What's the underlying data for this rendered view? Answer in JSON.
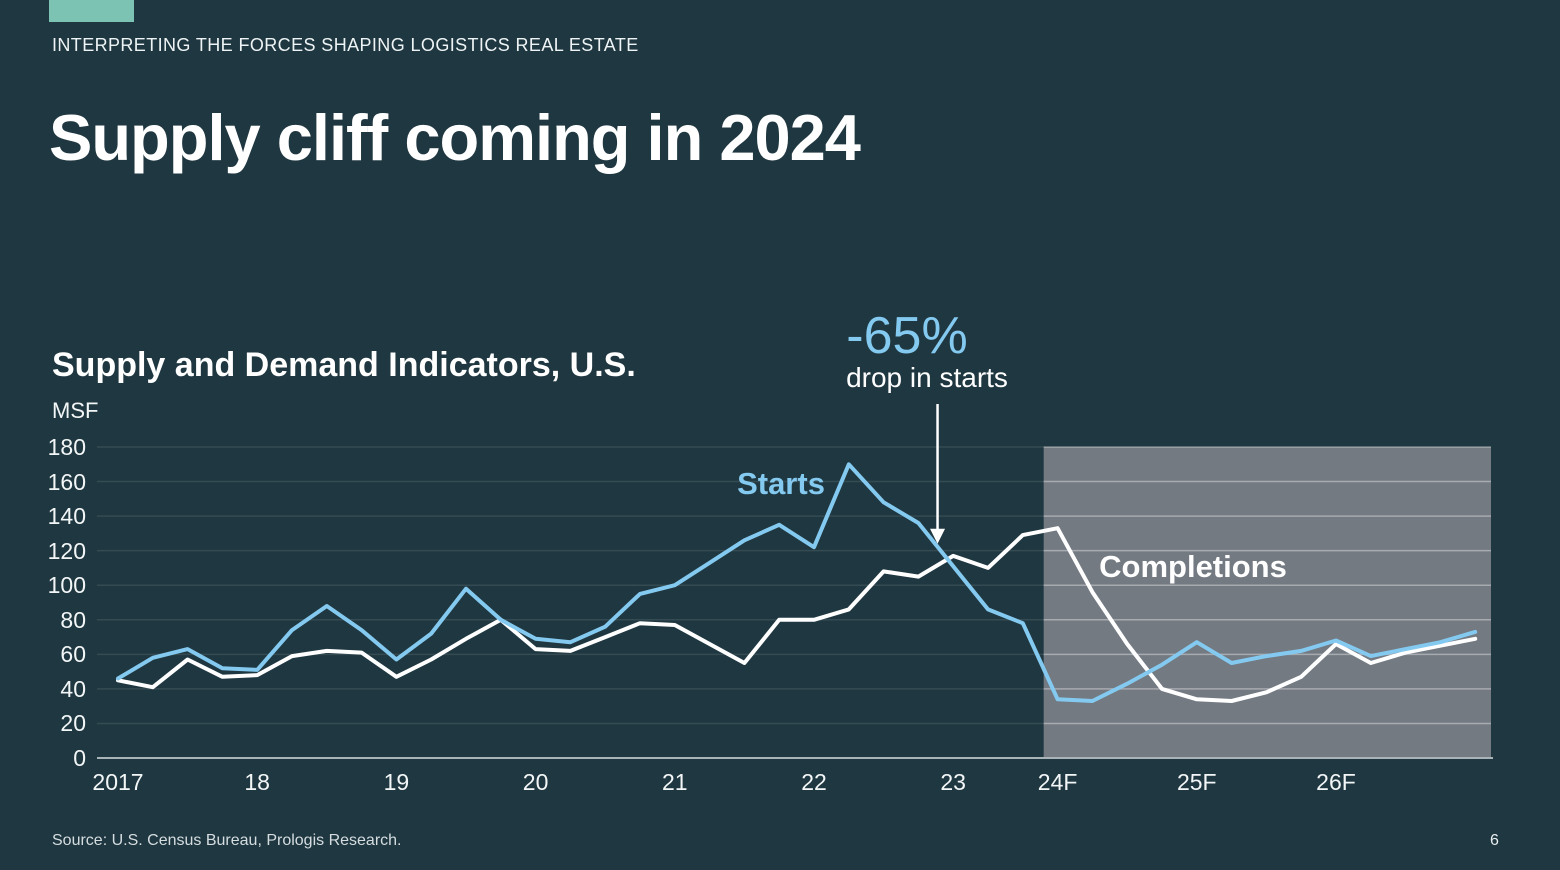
{
  "slide": {
    "eyebrow": "INTERPRETING THE FORCES SHAPING LOGISTICS REAL ESTATE",
    "title": "Supply cliff coming in 2024",
    "source": "Source: U.S. Census Bureau, Prologis Research.",
    "page_number": "6"
  },
  "chart": {
    "title": "Supply and Demand Indicators, U.S.",
    "unit_label": "MSF",
    "annotation": {
      "headline": "-65%",
      "subtext": "drop in starts"
    },
    "series_labels": {
      "starts": "Starts",
      "completions": "Completions"
    }
  },
  "colors": {
    "background": "#1f3740",
    "accent_teal": "#7cc3b4",
    "starts_blue": "#84caf0",
    "completions_white": "#ffffff",
    "forecast_gray": "#737a82",
    "axis_line": "#a9b4b9",
    "gridline": "rgba(255,255,255,0.10)",
    "gridline_on_gray": "rgba(255,255,255,0.30)"
  },
  "chart_data": {
    "type": "line",
    "title": "Supply and Demand Indicators, U.S.",
    "xlabel": "",
    "ylabel": "MSF",
    "ylim": [
      0,
      180
    ],
    "ytick_interval": 20,
    "yticks": [
      0,
      20,
      40,
      60,
      80,
      100,
      120,
      140,
      160,
      180
    ],
    "grid": "horizontal",
    "legend_position": "inline-labels",
    "x_start": "2017Q1",
    "x_freq": "quarterly",
    "x_labels": [
      "2017",
      "18",
      "19",
      "20",
      "21",
      "22",
      "23",
      "24F",
      "25F",
      "26F"
    ],
    "x_label_indices": [
      0,
      4,
      8,
      12,
      16,
      20,
      24,
      27,
      31,
      35
    ],
    "forecast_region": {
      "label": "forecast",
      "start_index": 26.6,
      "end_index": 39.45
    },
    "annotation": {
      "headline": "-65%",
      "subtext": "drop in starts",
      "arrow_target": {
        "index": 23.55,
        "value": 124
      }
    },
    "series": [
      {
        "name": "Completions",
        "color": "#ffffff",
        "values": [
          45,
          41,
          57,
          47,
          48,
          59,
          62,
          61,
          47,
          57,
          69,
          80,
          63,
          62,
          70,
          78,
          77,
          66,
          55,
          80,
          80,
          86,
          108,
          105,
          117,
          110,
          129,
          133,
          96,
          66,
          40,
          34,
          33,
          38,
          47,
          66,
          55,
          61,
          65,
          69
        ]
      },
      {
        "name": "Starts",
        "color": "#84caf0",
        "values": [
          46,
          58,
          63,
          52,
          51,
          74,
          88,
          74,
          57,
          72,
          98,
          80,
          69,
          67,
          76,
          95,
          100,
          113,
          126,
          135,
          122,
          170,
          148,
          136,
          111,
          86,
          78,
          34,
          33,
          43,
          54,
          67,
          55,
          59,
          62,
          68,
          59,
          63,
          67,
          73
        ]
      }
    ]
  }
}
